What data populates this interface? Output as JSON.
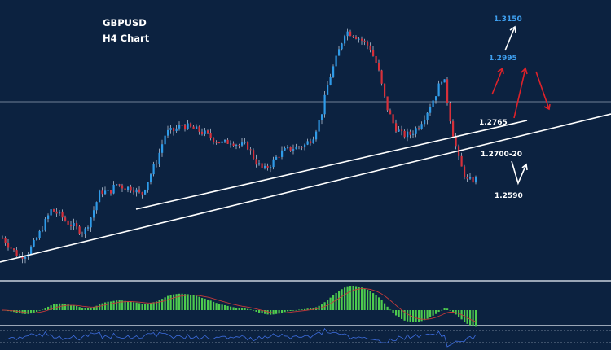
{
  "chart_data": {
    "type": "candlestick",
    "title": "GBPUSD",
    "subtitle": "H4 Chart",
    "colors": {
      "background": "#0c2240",
      "bull": "#2f9be8",
      "bear": "#d8303a",
      "wick": "#c8d4e4",
      "trendline": "#ffffff",
      "arrow_red": "#e0222a",
      "arrow_white": "#ffffff",
      "label_blue": "#3fa0f0",
      "label_white": "#ffffff",
      "histogram": "#4ecb4e",
      "signal": "#c43a3a",
      "rsi_line": "#3e6ee0"
    },
    "key_levels": [
      {
        "price": "1.3150",
        "style": "blue"
      },
      {
        "price": "1.2995",
        "style": "blue"
      },
      {
        "price": "1.2765",
        "style": "white"
      },
      {
        "price": "1.2700-20",
        "style": "white"
      },
      {
        "price": "1.2590",
        "style": "white"
      }
    ],
    "price_path": [
      1.2638,
      1.2618,
      1.2598,
      1.2605,
      1.263,
      1.2665,
      1.27,
      1.2688,
      1.2672,
      1.266,
      1.265,
      1.269,
      1.274,
      1.2736,
      1.2755,
      1.2747,
      1.2746,
      1.273,
      1.277,
      1.281,
      1.2865,
      1.287,
      1.2882,
      1.2876,
      1.287,
      1.2862,
      1.285,
      1.2842,
      1.2848,
      1.2838,
      1.2838,
      1.2804,
      1.2784,
      1.28,
      1.2821,
      1.283,
      1.2834,
      1.2838,
      1.2855,
      1.29,
      1.298,
      1.303,
      1.3085,
      1.3078,
      1.3065,
      1.305,
      1.3005,
      1.2925,
      1.288,
      1.286,
      1.2862,
      1.288,
      1.291,
      1.2945,
      1.299,
      1.288,
      1.28,
      1.276,
      1.2765
    ]
  }
}
